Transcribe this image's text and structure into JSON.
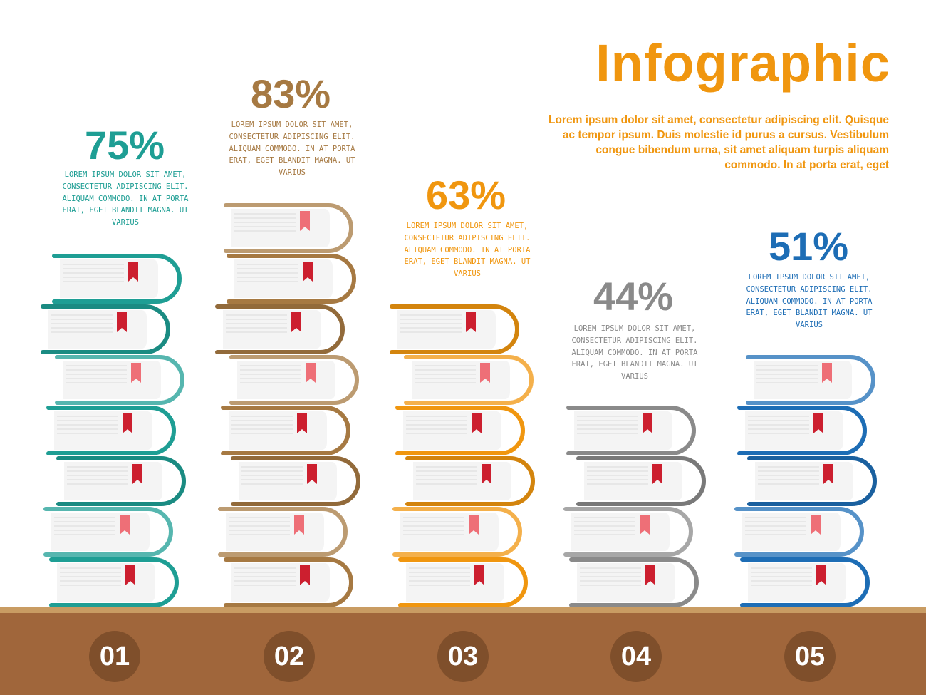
{
  "header": {
    "title": "Infographic",
    "text": "Lorem ipsum dolor sit amet, consectetur adipiscing elit. Quisque ac tempor ipsum. Duis molestie id purus a cursus. Vestibulum congue bibendum urna, sit amet aliquam turpis aliquam commodo. In at porta erat, eget"
  },
  "colors": {
    "title": "#f0960f",
    "shelf_top": "#c99c63",
    "shelf_front": "#a0663b",
    "number_circle": "#7f4f2b",
    "bookmark": "#cc1f2f",
    "bookmark_light": "#ee6f77"
  },
  "chart_data": {
    "type": "bar",
    "categories": [
      "01",
      "02",
      "03",
      "04",
      "05"
    ],
    "values": [
      75,
      83,
      63,
      44,
      51
    ],
    "unit": "%",
    "value_labels": [
      "75%",
      "83%",
      "63%",
      "44%",
      "51%"
    ],
    "books_per_stack": [
      7,
      8,
      6,
      4,
      5
    ],
    "series_colors": [
      "#1e9e94",
      "#a67942",
      "#f0960f",
      "#8a8a8a",
      "#1d6db5"
    ],
    "descriptions": [
      "Lorem ipsum dolor sit amet, consectetur adipiscing elit. Aliquam commodo. In at porta erat, eget blandit magna. Ut varius",
      "Lorem ipsum dolor sit amet, consectetur adipiscing elit. Aliquam commodo. In at porta erat, eget blandit magna. Ut varius",
      "Lorem ipsum dolor sit amet, consectetur adipiscing elit. Aliquam commodo. In at porta erat, eget blandit magna. Ut varius",
      "Lorem ipsum dolor sit amet, consectetur adipiscing elit. Aliquam commodo. In at porta erat, eget blandit magna. Ut varius",
      "Lorem ipsum dolor sit amet, consectetur adipiscing elit. Aliquam commodo. In at porta erat, eget blandit magna. Ut varius"
    ]
  }
}
